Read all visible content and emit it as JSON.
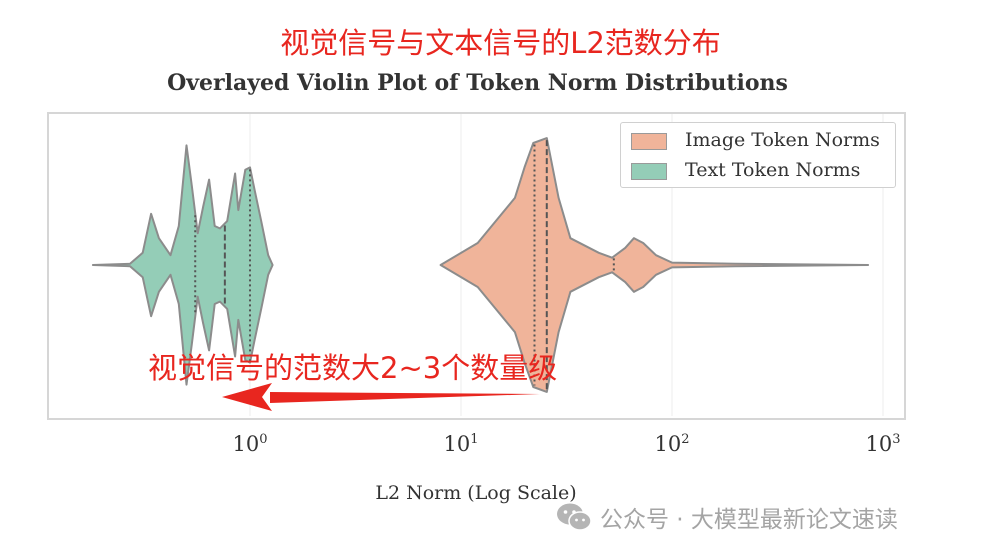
{
  "annotation_top": "视觉信号与文本信号的L2范数分布",
  "annotation_arrow": "视觉信号的范数大2~3个数量级",
  "watermark": {
    "icon": "wechat-icon",
    "text": "公众号 · 大模型最新论文速读"
  },
  "colors": {
    "image": "#f0b49a",
    "text": "#94cdb7",
    "outline": "#8c8c8c",
    "annotation": "#e8261f"
  },
  "chart_data": {
    "type": "violin",
    "orientation": "horizontal",
    "title": "Overlayed Violin Plot of Token Norm Distributions",
    "xlabel": "L2 Norm (Log Scale)",
    "ylabel": "",
    "xscale": "log",
    "xlim": [
      0.1,
      1000
    ],
    "xticks": [
      {
        "value": 1,
        "base": "10",
        "exp": "0"
      },
      {
        "value": 10,
        "base": "10",
        "exp": "1"
      },
      {
        "value": 100,
        "base": "10",
        "exp": "2"
      },
      {
        "value": 1000,
        "base": "10",
        "exp": "3"
      }
    ],
    "grid": true,
    "legend_position": "top-right",
    "series": [
      {
        "name": "Image Token Norms",
        "color": "#f0b49a",
        "profile": [
          [
            8,
            0
          ],
          [
            12,
            0.18
          ],
          [
            18,
            0.55
          ],
          [
            20,
            0.8
          ],
          [
            22,
            1
          ],
          [
            25.5,
            1.04
          ],
          [
            29,
            0.55
          ],
          [
            33,
            0.22
          ],
          [
            45,
            0.1
          ],
          [
            52,
            0.06
          ],
          [
            60,
            0.14
          ],
          [
            66,
            0.22
          ],
          [
            73,
            0.18
          ],
          [
            84,
            0.08
          ],
          [
            100,
            0.02
          ],
          [
            200,
            0.01
          ],
          [
            850,
            0
          ]
        ],
        "quartiles": [
          22.3,
          25.5,
          53
        ]
      },
      {
        "name": "Text Token Norms",
        "color": "#94cdb7",
        "profile": [
          [
            0.18,
            0
          ],
          [
            0.27,
            0.01
          ],
          [
            0.31,
            0.1
          ],
          [
            0.34,
            0.42
          ],
          [
            0.37,
            0.22
          ],
          [
            0.42,
            0.08
          ],
          [
            0.46,
            0.32
          ],
          [
            0.5,
            0.98
          ],
          [
            0.53,
            0.65
          ],
          [
            0.565,
            0.26
          ],
          [
            0.6,
            0.48
          ],
          [
            0.64,
            0.7
          ],
          [
            0.68,
            0.32
          ],
          [
            0.72,
            0.3
          ],
          [
            0.78,
            0.36
          ],
          [
            0.85,
            0.75
          ],
          [
            0.88,
            0.45
          ],
          [
            0.95,
            0.78
          ],
          [
            1.0,
            0.8
          ],
          [
            1.05,
            0.62
          ],
          [
            1.13,
            0.36
          ],
          [
            1.22,
            0.08
          ],
          [
            1.28,
            0
          ]
        ],
        "quartiles": [
          0.55,
          0.76,
          1.0
        ]
      }
    ]
  }
}
